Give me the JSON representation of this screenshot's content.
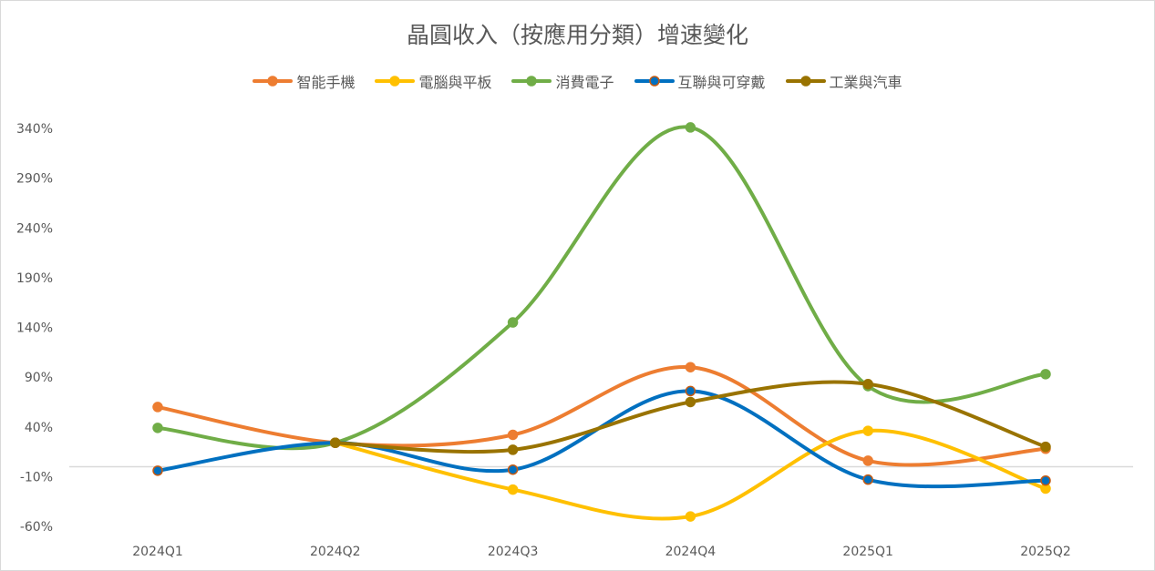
{
  "chart_data": {
    "type": "line",
    "smooth": true,
    "title": "晶圓收入（按應用分類）增速變化",
    "categories": [
      "2024Q1",
      "2024Q2",
      "2024Q3",
      "2024Q4",
      "2025Q1",
      "2025Q2"
    ],
    "ylim": [
      -60,
      340
    ],
    "yticks": [
      -60,
      -10,
      40,
      90,
      140,
      190,
      240,
      290,
      340
    ],
    "ytick_labels": [
      "-60%",
      "-10%",
      "40%",
      "90%",
      "140%",
      "190%",
      "240%",
      "290%",
      "340%"
    ],
    "grid": false,
    "legend": "top",
    "series": [
      {
        "name": "智能手機",
        "color": "#ED7D31",
        "marker_border": "#ED7D31",
        "values": [
          60,
          24,
          32,
          100,
          6,
          18
        ]
      },
      {
        "name": "電腦與平板",
        "color": "#FFC000",
        "marker_border": "#FFC000",
        "values": [
          null,
          24,
          -23,
          -50,
          36,
          -22
        ]
      },
      {
        "name": "消費電子",
        "color": "#70AD47",
        "marker_border": "#70AD47",
        "values": [
          39,
          24,
          145,
          341,
          81,
          93
        ]
      },
      {
        "name": "互聯與可穿戴",
        "color": "#0070C0",
        "marker_border": "#C55A11",
        "values": [
          -4,
          24,
          -3,
          76,
          -13,
          -14
        ]
      },
      {
        "name": "工業與汽車",
        "color": "#997300",
        "marker_border": "#997300",
        "values": [
          null,
          24,
          17,
          65,
          83,
          20
        ]
      }
    ]
  }
}
